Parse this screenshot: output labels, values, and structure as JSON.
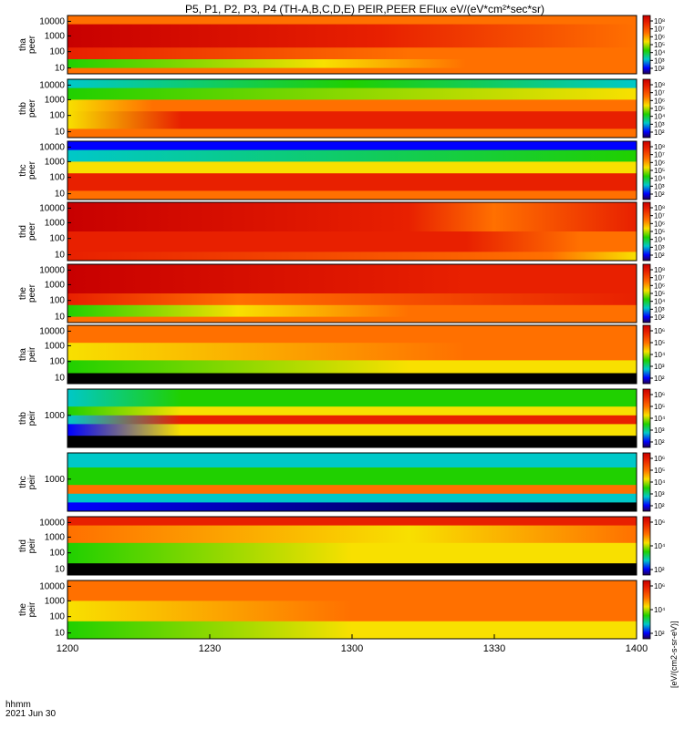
{
  "title": "P5, P1, P2, P3, P4 (TH-A,B,C,D,E) PEIR,PEER EFlux eV/(eV*cm²*sec*sr)",
  "colorbar_label": "[eV/(cm2-s-sr-eV)]",
  "footer": {
    "time_label": "hhmm",
    "date_label": "2021 Jun 30"
  },
  "chart_data": {
    "type": "heatmap",
    "x_axis": {
      "ticks": [
        "1200",
        "1230",
        "1300",
        "1330",
        "1400"
      ],
      "range": [
        "12:00",
        "14:00"
      ]
    },
    "panels": [
      {
        "name": "tha peer",
        "label": [
          "tha",
          "peer"
        ],
        "y_ticks": [
          "10000",
          "1000",
          "100",
          "10"
        ],
        "cbar_ticks": [
          "10⁸",
          "10⁷",
          "10⁶",
          "10⁵",
          "10⁴",
          "10³",
          "10²"
        ],
        "y_log": true
      },
      {
        "name": "thb peer",
        "label": [
          "thb",
          "peer"
        ],
        "y_ticks": [
          "10000",
          "1000",
          "100",
          "10"
        ],
        "cbar_ticks": [
          "10⁸",
          "10⁷",
          "10⁶",
          "10⁵",
          "10⁴",
          "10³",
          "10²"
        ],
        "y_log": true
      },
      {
        "name": "thc peer",
        "label": [
          "thc",
          "peer"
        ],
        "y_ticks": [
          "10000",
          "1000",
          "100",
          "10"
        ],
        "cbar_ticks": [
          "10⁸",
          "10⁷",
          "10⁶",
          "10⁵",
          "10⁴",
          "10³",
          "10²"
        ],
        "y_log": true
      },
      {
        "name": "thd peer",
        "label": [
          "thd",
          "peer"
        ],
        "y_ticks": [
          "10000",
          "1000",
          "100",
          "10"
        ],
        "cbar_ticks": [
          "10⁸",
          "10⁷",
          "10⁶",
          "10⁵",
          "10⁴",
          "10³",
          "10²"
        ],
        "y_log": true
      },
      {
        "name": "the peer",
        "label": [
          "the",
          "peer"
        ],
        "y_ticks": [
          "10000",
          "1000",
          "100",
          "10"
        ],
        "cbar_ticks": [
          "10⁸",
          "10⁷",
          "10⁶",
          "10⁵",
          "10⁴",
          "10³",
          "10²"
        ],
        "y_log": true
      },
      {
        "name": "tha peir",
        "label": [
          "tha",
          "peir"
        ],
        "y_ticks": [
          "10000",
          "1000",
          "100",
          "10"
        ],
        "cbar_ticks": [
          "10⁶",
          "10⁵",
          "10⁴",
          "10³",
          "10²"
        ],
        "y_log": true
      },
      {
        "name": "thb peir",
        "label": [
          "thb",
          "peir"
        ],
        "y_ticks": [
          "1000"
        ],
        "cbar_ticks": [
          "10⁶",
          "10⁵",
          "10⁴",
          "10³",
          "10²"
        ],
        "y_log": true
      },
      {
        "name": "thc peir",
        "label": [
          "thc",
          "peir"
        ],
        "y_ticks": [
          "1000"
        ],
        "cbar_ticks": [
          "10⁶",
          "10⁵",
          "10⁴",
          "10³",
          "10²"
        ],
        "y_log": true
      },
      {
        "name": "thd peir",
        "label": [
          "thd",
          "peir"
        ],
        "y_ticks": [
          "10000",
          "1000",
          "100",
          "10"
        ],
        "cbar_ticks": [
          "10⁶",
          "10⁴",
          "10²"
        ],
        "y_log": true
      },
      {
        "name": "the peir",
        "label": [
          "the",
          "peir"
        ],
        "y_ticks": [
          "10000",
          "1000",
          "100",
          "10"
        ],
        "cbar_ticks": [
          "10⁶",
          "10⁴",
          "10²"
        ],
        "y_log": true
      }
    ],
    "colors": {
      "dark_red": "#c80000",
      "red": "#e82000",
      "orange": "#ff7000",
      "yellow": "#f8e000",
      "green": "#20d000",
      "cyan": "#00c8c8",
      "blue": "#0000ff",
      "black": "#000000",
      "gap": "#ffffff"
    }
  }
}
